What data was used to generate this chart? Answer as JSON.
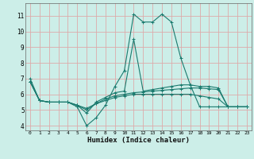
{
  "xlabel": "Humidex (Indice chaleur)",
  "background_color": "#cceee8",
  "grid_color": "#ddaaaa",
  "line_color": "#1a7a6e",
  "xlim": [
    -0.5,
    23.5
  ],
  "ylim": [
    3.7,
    11.8
  ],
  "yticks": [
    4,
    5,
    6,
    7,
    8,
    9,
    10,
    11
  ],
  "xticks": [
    0,
    1,
    2,
    3,
    4,
    5,
    6,
    7,
    8,
    9,
    10,
    11,
    12,
    13,
    14,
    15,
    16,
    17,
    18,
    19,
    20,
    21,
    22,
    23
  ],
  "series": [
    {
      "x": [
        0,
        1,
        2,
        3,
        4,
        5,
        6,
        7,
        8,
        9,
        10,
        11,
        12,
        13,
        14,
        15,
        16,
        17,
        18,
        19,
        20,
        21,
        22,
        23
      ],
      "y": [
        7.0,
        5.6,
        5.5,
        5.5,
        5.5,
        5.2,
        4.0,
        4.5,
        5.3,
        6.5,
        7.5,
        11.1,
        10.6,
        10.6,
        11.1,
        10.6,
        8.3,
        6.6,
        5.2,
        5.2,
        5.2,
        5.2,
        5.2,
        5.2
      ]
    },
    {
      "x": [
        0,
        1,
        2,
        3,
        4,
        5,
        6,
        7,
        8,
        9,
        10,
        11,
        12,
        13,
        14,
        15,
        16,
        17,
        18,
        19,
        20,
        21,
        22,
        23
      ],
      "y": [
        6.8,
        5.6,
        5.5,
        5.5,
        5.5,
        5.3,
        4.8,
        5.5,
        5.8,
        6.1,
        6.2,
        9.5,
        6.2,
        6.3,
        6.4,
        6.5,
        6.6,
        6.6,
        6.5,
        6.5,
        6.4,
        5.2,
        5.2,
        5.2
      ]
    },
    {
      "x": [
        0,
        1,
        2,
        3,
        4,
        5,
        6,
        7,
        8,
        9,
        10,
        11,
        12,
        13,
        14,
        15,
        16,
        17,
        18,
        19,
        20,
        21,
        22,
        23
      ],
      "y": [
        6.8,
        5.6,
        5.5,
        5.5,
        5.5,
        5.3,
        5.0,
        5.4,
        5.7,
        5.9,
        6.0,
        6.1,
        6.15,
        6.2,
        6.25,
        6.3,
        6.35,
        6.4,
        6.4,
        6.35,
        6.3,
        5.2,
        5.2,
        5.2
      ]
    },
    {
      "x": [
        0,
        1,
        2,
        3,
        4,
        5,
        6,
        7,
        8,
        9,
        10,
        11,
        12,
        13,
        14,
        15,
        16,
        17,
        18,
        19,
        20,
        21,
        22,
        23
      ],
      "y": [
        6.8,
        5.6,
        5.5,
        5.5,
        5.5,
        5.3,
        5.1,
        5.4,
        5.6,
        5.8,
        5.9,
        6.0,
        6.0,
        6.0,
        6.0,
        6.0,
        6.0,
        6.0,
        5.9,
        5.8,
        5.7,
        5.2,
        5.2,
        5.2
      ]
    }
  ]
}
